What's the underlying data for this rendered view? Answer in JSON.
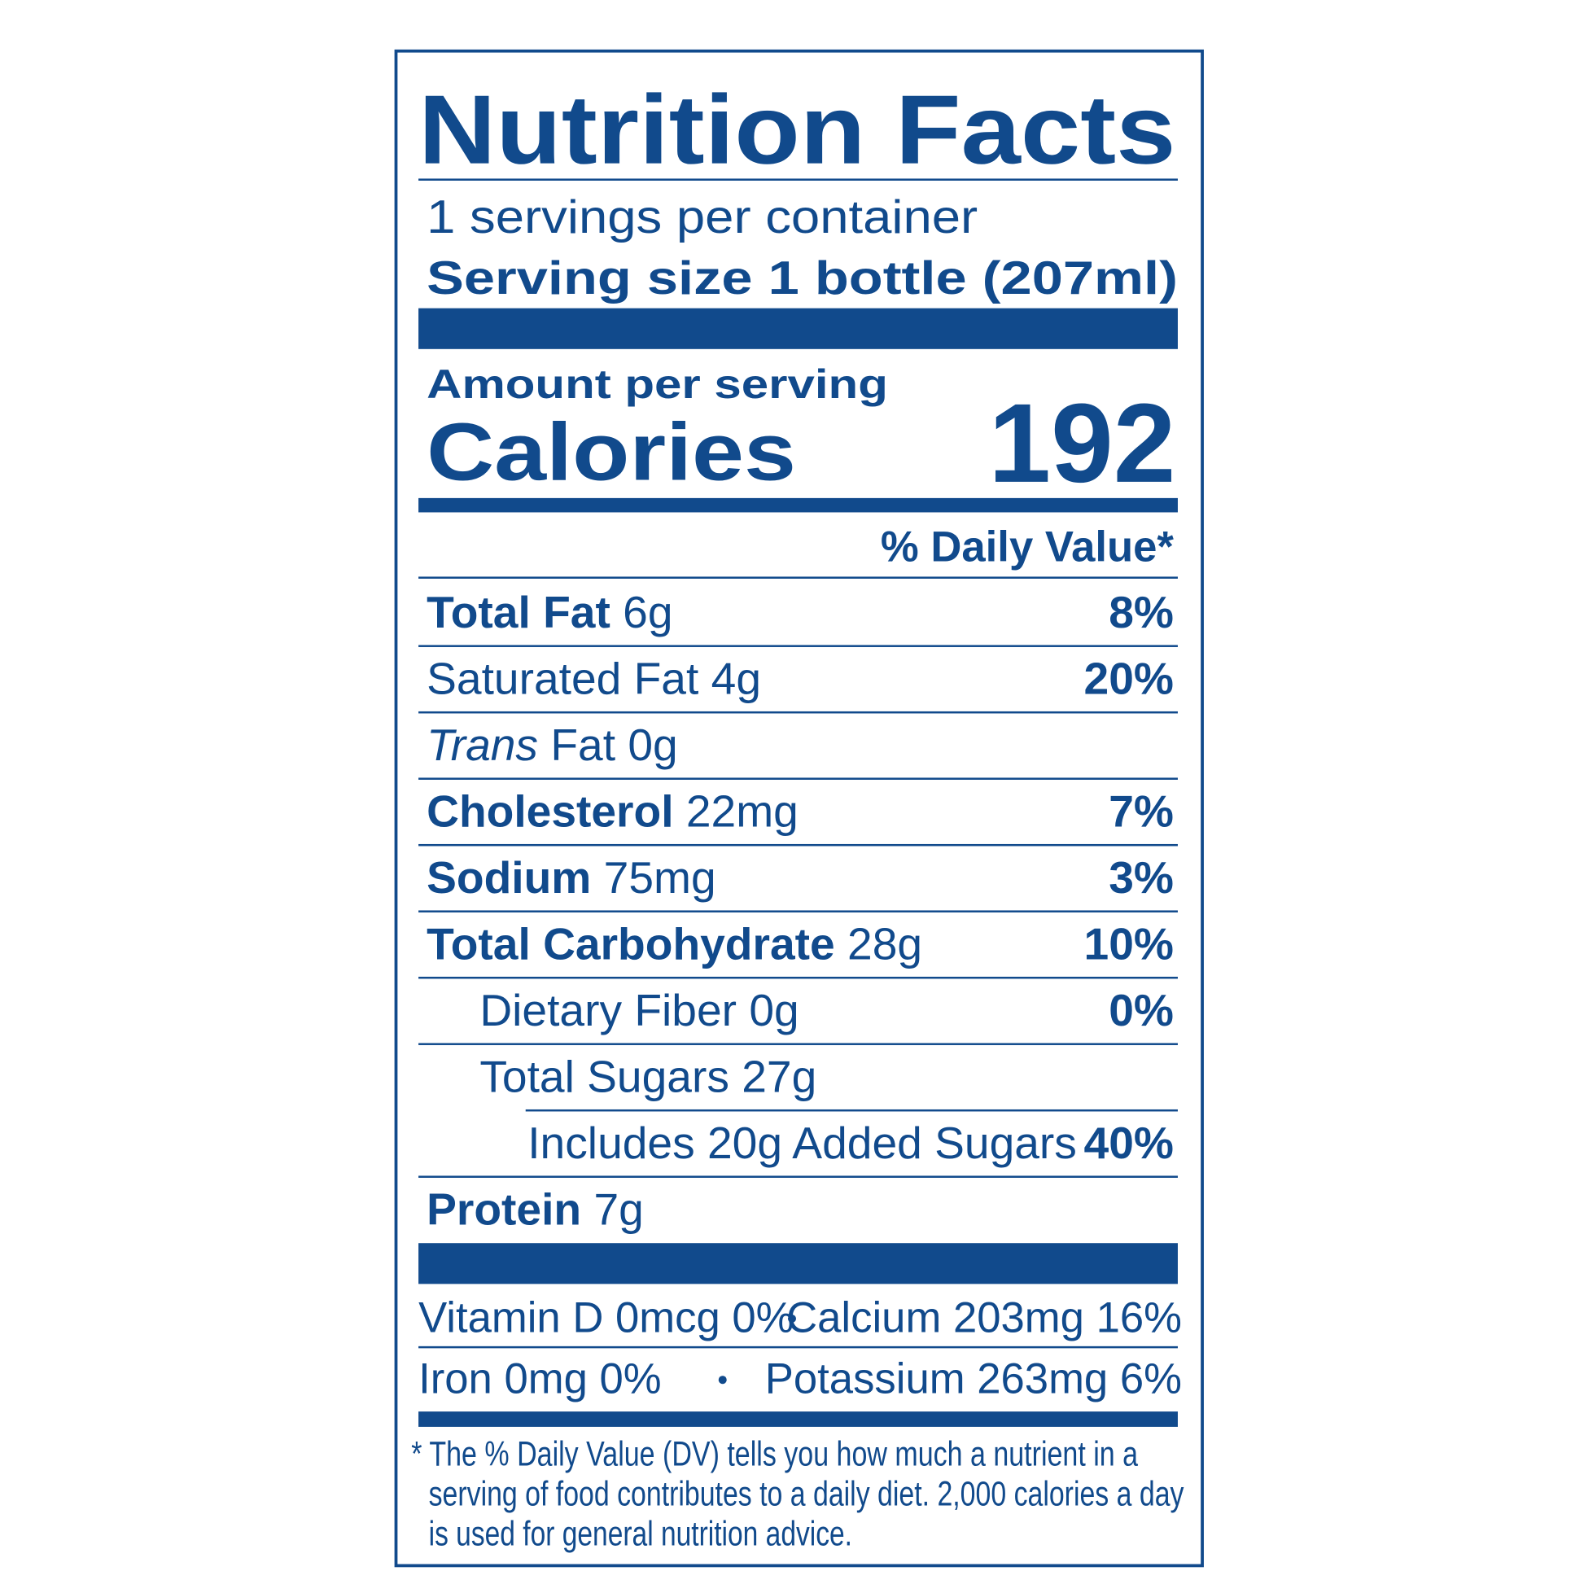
{
  "title": "Nutrition Facts",
  "servings_per_container": "1 servings per container",
  "serving_size": "Serving size 1 bottle (207ml)",
  "amount_per_serving": "Amount per serving",
  "calories": {
    "label": "Calories",
    "value": "192"
  },
  "daily_value_header": "% Daily Value*",
  "nutrients": [
    {
      "name": "Total Fat",
      "amount": "6g",
      "dv": "8%",
      "bold": true,
      "indent": 0
    },
    {
      "name": "Saturated Fat",
      "amount": "4g",
      "dv": "20%",
      "bold": false,
      "indent": 0
    },
    {
      "name_italic": "Trans",
      "name": "Fat",
      "amount": "0g",
      "bold": false,
      "indent": 0
    },
    {
      "name": "Cholesterol",
      "amount": "22mg",
      "dv": "7%",
      "bold": true,
      "indent": 0
    },
    {
      "name": "Sodium",
      "amount": "75mg",
      "dv": "3%",
      "bold": true,
      "indent": 0
    },
    {
      "name": "Total Carbohydrate",
      "amount": "28g",
      "dv": "10%",
      "bold": true,
      "indent": 0
    },
    {
      "name": "Dietary Fiber",
      "amount": "0g",
      "dv": "0%",
      "bold": false,
      "indent": 1
    },
    {
      "name": "Total Sugars",
      "amount": "27g",
      "bold": false,
      "indent": 1
    },
    {
      "name": "Includes 20g Added Sugars",
      "dv": "40%",
      "bold": false,
      "indent": 2
    },
    {
      "name": "Protein",
      "amount": "7g",
      "bold": true,
      "indent": 0
    }
  ],
  "vitamins": [
    [
      "Vitamin D 0mcg 0%",
      "Calcium 203mg 16%"
    ],
    [
      "Iron 0mg 0%",
      "Potassium 263mg 6%"
    ]
  ],
  "footnote": [
    "* The % Daily Value (DV) tells you how much a nutrient in a",
    "serving of food contributes to a daily diet. 2,000 calories a day",
    "is used for general nutrition advice."
  ]
}
